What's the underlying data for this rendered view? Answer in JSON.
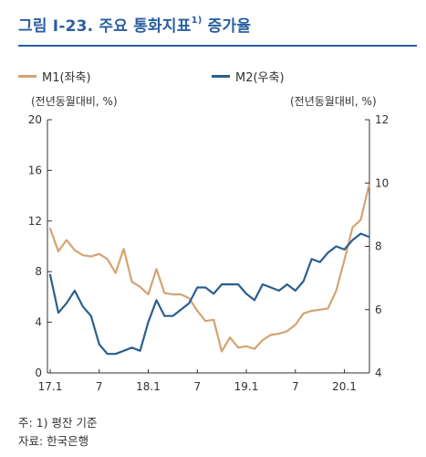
{
  "header": {
    "title": "그림 I-23. 주요 통화지표",
    "title_sup": "1)",
    "title_suffix": " 증가율"
  },
  "notes": {
    "note": "주: 1) 평잔 기준",
    "source": "자료: 한국은행"
  },
  "colors": {
    "title": "#2a5fa0",
    "m1": "#d4a373",
    "m2": "#2b5f8e"
  },
  "chart_data": {
    "type": "line",
    "left_unit": "(전년동월대비, %)",
    "right_unit": "(전년동월대비, %)",
    "x_ticks": [
      "17.1",
      "7",
      "18.1",
      "7",
      "19.1",
      "7",
      "20.1"
    ],
    "left_axis": {
      "range": [
        0,
        20
      ],
      "ticks": [
        "0",
        "4",
        "8",
        "12",
        "16",
        "20"
      ]
    },
    "right_axis": {
      "range": [
        4,
        12
      ],
      "ticks": [
        "4",
        "6",
        "8",
        "10",
        "12"
      ]
    },
    "x": [
      "2017.01",
      "2017.02",
      "2017.03",
      "2017.04",
      "2017.05",
      "2017.06",
      "2017.07",
      "2017.08",
      "2017.09",
      "2017.10",
      "2017.11",
      "2017.12",
      "2018.01",
      "2018.02",
      "2018.03",
      "2018.04",
      "2018.05",
      "2018.06",
      "2018.07",
      "2018.08",
      "2018.09",
      "2018.10",
      "2018.11",
      "2018.12",
      "2019.01",
      "2019.02",
      "2019.03",
      "2019.04",
      "2019.05",
      "2019.06",
      "2019.07",
      "2019.08",
      "2019.09",
      "2019.10",
      "2019.11",
      "2019.12",
      "2020.01",
      "2020.02",
      "2020.03",
      "2020.04"
    ],
    "series": [
      {
        "name": "M1(좌축)",
        "axis": "left",
        "values": [
          11.4,
          9.6,
          10.5,
          9.7,
          9.3,
          9.2,
          9.4,
          9.0,
          7.9,
          9.8,
          7.2,
          6.8,
          6.2,
          8.2,
          6.3,
          6.2,
          6.2,
          5.9,
          4.9,
          4.1,
          4.2,
          1.7,
          2.8,
          2.0,
          2.1,
          1.9,
          2.6,
          3.0,
          3.1,
          3.3,
          3.8,
          4.7,
          4.9,
          5.0,
          5.1,
          6.5,
          8.9,
          11.5,
          12.1,
          14.8
        ]
      },
      {
        "name": "M2(우축)",
        "axis": "right",
        "values": [
          7.1,
          5.9,
          6.2,
          6.6,
          6.1,
          5.8,
          4.9,
          4.6,
          4.6,
          4.7,
          4.8,
          4.7,
          5.6,
          6.3,
          5.8,
          5.8,
          6.0,
          6.2,
          6.7,
          6.7,
          6.5,
          6.8,
          6.8,
          6.8,
          6.5,
          6.3,
          6.8,
          6.7,
          6.6,
          6.8,
          6.6,
          6.9,
          7.6,
          7.5,
          7.8,
          8.0,
          7.9,
          8.2,
          8.4,
          8.3
        ]
      }
    ]
  }
}
